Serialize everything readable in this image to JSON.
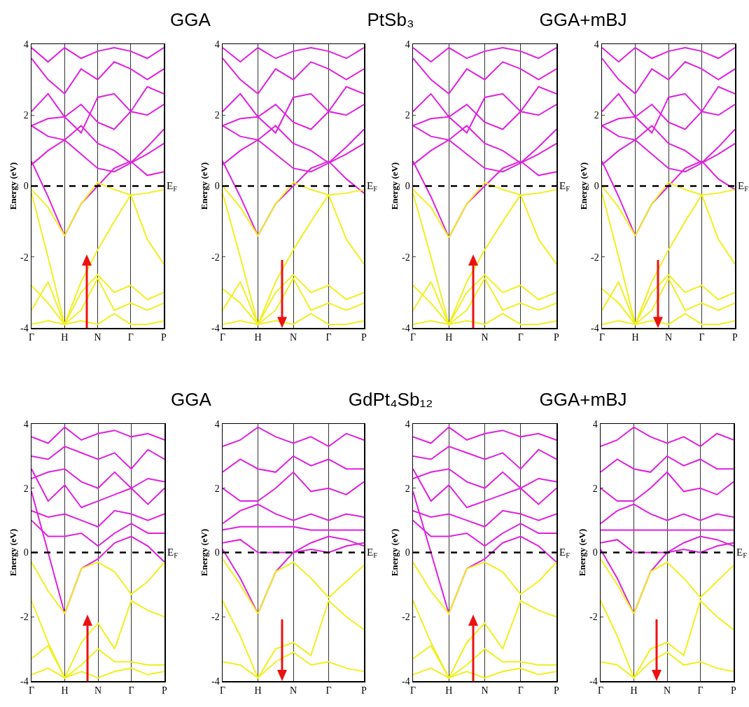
{
  "chart_data": [
    {
      "type": "line",
      "title": "GGA",
      "ylabel": "Energy (eV)",
      "categories": [
        "Γ",
        null,
        "H",
        null,
        "N",
        null,
        "Γ",
        null,
        "P"
      ],
      "ylim": [
        -4,
        4
      ],
      "yticks": [
        -4,
        -2,
        0,
        2,
        4
      ],
      "grid": "x",
      "marker": "none",
      "line_style": "solid",
      "ref_lines": [
        {
          "axis": "y",
          "value": 0,
          "label": "E$_{F}$",
          "color": "#000000",
          "line_style": "dashed"
        }
      ],
      "series": [
        {
          "color": "#e020e0",
          "values": [
            0.7,
            -0.3,
            -1.4,
            -0.5,
            0.0,
            0.5,
            0.7,
            0.3,
            0.4
          ]
        },
        {
          "color": "#e020e0",
          "values": [
            0.6,
            1.0,
            1.3,
            0.9,
            0.5,
            0.4,
            0.65,
            0.9,
            1.2
          ]
        },
        {
          "color": "#e020e0",
          "values": [
            1.7,
            1.4,
            1.3,
            1.7,
            1.2,
            1.0,
            0.65,
            1.1,
            1.6
          ]
        },
        {
          "color": "#e020e0",
          "values": [
            1.7,
            1.9,
            1.95,
            2.3,
            1.8,
            1.6,
            2.1,
            2.0,
            2.3
          ]
        },
        {
          "color": "#e020e0",
          "values": [
            2.1,
            2.6,
            1.95,
            1.5,
            2.5,
            2.6,
            2.1,
            2.8,
            2.6
          ]
        },
        {
          "color": "#e020e0",
          "values": [
            3.6,
            3.0,
            2.6,
            3.3,
            3.0,
            3.5,
            3.3,
            3.0,
            3.3
          ]
        },
        {
          "color": "#e020e0",
          "values": [
            3.9,
            3.5,
            3.9,
            3.6,
            3.8,
            3.9,
            3.8,
            3.6,
            3.9
          ]
        },
        {
          "color": "#f0f020",
          "values": [
            -0.1,
            -0.6,
            -1.4,
            -0.5,
            0.1,
            -0.1,
            -0.25,
            -0.2,
            -0.1
          ]
        },
        {
          "color": "#f0f020",
          "values": [
            -0.2,
            -2.0,
            -3.9,
            -2.7,
            -1.8,
            -1.0,
            -0.25,
            -1.5,
            -2.2
          ]
        },
        {
          "color": "#f0f020",
          "values": [
            -2.8,
            -3.3,
            -3.9,
            -3.0,
            -2.5,
            -3.0,
            -2.8,
            -3.2,
            -3.0
          ]
        },
        {
          "color": "#f0f020",
          "values": [
            -3.5,
            -2.7,
            -3.9,
            -3.5,
            -2.6,
            -3.5,
            -3.3,
            -3.5,
            -3.3
          ]
        },
        {
          "color": "#f0f020",
          "values": [
            -3.9,
            -3.8,
            -3.9,
            -3.8,
            -3.9,
            -3.6,
            -3.9,
            -3.9,
            -3.8
          ]
        }
      ]
    },
    {
      "type": "line",
      "title": "PtSb₃",
      "ylabel": "Energy (eV)",
      "categories": [
        "Γ",
        null,
        "H",
        null,
        "N",
        null,
        "Γ",
        null,
        "P"
      ],
      "ylim": [
        -4,
        4
      ],
      "yticks": [
        -4,
        -2,
        0,
        2,
        4
      ],
      "grid": "x",
      "marker": "none",
      "line_style": "solid",
      "ref_lines": [
        {
          "axis": "y",
          "value": 0,
          "label": "E$_{F}$",
          "color": "#000000",
          "line_style": "dashed"
        }
      ],
      "series": [
        {
          "color": "#e020e0",
          "values": [
            0.7,
            -0.3,
            -1.4,
            -0.5,
            0.0,
            0.5,
            0.7,
            0.2,
            -0.2
          ]
        },
        {
          "color": "#e020e0",
          "values": [
            0.6,
            1.0,
            1.3,
            0.9,
            0.5,
            0.4,
            0.65,
            0.9,
            1.2
          ]
        },
        {
          "color": "#e020e0",
          "values": [
            1.7,
            1.4,
            1.3,
            1.7,
            1.2,
            1.0,
            0.65,
            1.1,
            1.6
          ]
        },
        {
          "color": "#e020e0",
          "values": [
            1.7,
            1.9,
            1.95,
            2.3,
            1.8,
            1.6,
            2.1,
            2.0,
            2.3
          ]
        },
        {
          "color": "#e020e0",
          "values": [
            2.1,
            2.6,
            1.95,
            1.5,
            2.5,
            2.6,
            2.1,
            2.8,
            2.6
          ]
        },
        {
          "color": "#e020e0",
          "values": [
            3.6,
            3.0,
            2.6,
            3.3,
            3.0,
            3.5,
            3.3,
            3.0,
            3.3
          ]
        },
        {
          "color": "#e020e0",
          "values": [
            3.9,
            3.5,
            3.9,
            3.6,
            3.8,
            3.9,
            3.8,
            3.6,
            3.9
          ]
        },
        {
          "color": "#f0f020",
          "values": [
            0.0,
            -0.6,
            -1.4,
            -0.5,
            0.1,
            -0.1,
            -0.25,
            -0.2,
            -0.1
          ]
        },
        {
          "color": "#f0f020",
          "values": [
            -0.2,
            -2.0,
            -3.9,
            -2.7,
            -1.8,
            -1.0,
            -0.25,
            -1.5,
            -2.2
          ]
        },
        {
          "color": "#f0f020",
          "values": [
            -2.9,
            -3.3,
            -3.9,
            -3.0,
            -2.5,
            -3.0,
            -2.8,
            -3.2,
            -3.0
          ]
        },
        {
          "color": "#f0f020",
          "values": [
            -3.5,
            -2.7,
            -3.9,
            -3.5,
            -2.6,
            -3.5,
            -3.3,
            -3.5,
            -3.3
          ]
        },
        {
          "color": "#f0f020",
          "values": [
            -3.9,
            -3.8,
            -3.9,
            -3.8,
            -3.9,
            -3.6,
            -3.9,
            -3.9,
            -3.8
          ]
        }
      ]
    },
    {
      "type": "line",
      "title": "GGA+mBJ",
      "ylabel": "Energy (eV)",
      "categories": [
        "Γ",
        null,
        "H",
        null,
        "N",
        null,
        "Γ",
        null,
        "P"
      ],
      "ylim": [
        -4,
        4
      ],
      "yticks": [
        -4,
        -2,
        0,
        2,
        4
      ],
      "grid": "x",
      "marker": "none",
      "line_style": "solid",
      "ref_lines": [
        {
          "axis": "y",
          "value": 0,
          "label": "E$_{F}$",
          "color": "#000000",
          "line_style": "dashed"
        }
      ],
      "series": [
        {
          "color": "#e020e0",
          "values": [
            0.7,
            -0.3,
            -1.45,
            -0.5,
            0.0,
            0.5,
            0.7,
            0.3,
            0.4
          ]
        },
        {
          "color": "#e020e0",
          "values": [
            0.6,
            1.0,
            1.3,
            0.9,
            0.5,
            0.4,
            0.65,
            0.9,
            1.2
          ]
        },
        {
          "color": "#e020e0",
          "values": [
            1.7,
            1.4,
            1.3,
            1.7,
            1.2,
            1.0,
            0.65,
            1.1,
            1.6
          ]
        },
        {
          "color": "#e020e0",
          "values": [
            1.7,
            1.9,
            1.95,
            2.3,
            1.8,
            1.6,
            2.1,
            2.0,
            2.3
          ]
        },
        {
          "color": "#e020e0",
          "values": [
            2.1,
            2.6,
            1.95,
            1.5,
            2.5,
            2.6,
            2.1,
            2.8,
            2.6
          ]
        },
        {
          "color": "#e020e0",
          "values": [
            3.6,
            3.0,
            2.6,
            3.3,
            3.0,
            3.5,
            3.3,
            3.0,
            3.3
          ]
        },
        {
          "color": "#e020e0",
          "values": [
            3.9,
            3.5,
            3.9,
            3.6,
            3.8,
            3.9,
            3.8,
            3.6,
            3.9
          ]
        },
        {
          "color": "#f0f020",
          "values": [
            -0.1,
            -0.6,
            -1.45,
            -0.5,
            0.1,
            -0.1,
            -0.25,
            -0.2,
            -0.1
          ]
        },
        {
          "color": "#f0f020",
          "values": [
            -0.2,
            -2.0,
            -3.9,
            -2.7,
            -1.8,
            -1.0,
            -0.25,
            -1.5,
            -2.2
          ]
        },
        {
          "color": "#f0f020",
          "values": [
            -2.8,
            -3.3,
            -3.9,
            -3.0,
            -2.5,
            -3.0,
            -2.8,
            -3.2,
            -3.0
          ]
        },
        {
          "color": "#f0f020",
          "values": [
            -3.5,
            -2.7,
            -3.9,
            -3.5,
            -2.6,
            -3.5,
            -3.3,
            -3.5,
            -3.3
          ]
        },
        {
          "color": "#f0f020",
          "values": [
            -3.9,
            -3.8,
            -3.9,
            -3.8,
            -3.9,
            -3.6,
            -3.9,
            -3.9,
            -3.8
          ]
        }
      ]
    },
    {
      "type": "line",
      "ylabel": "Energy (eV)",
      "categories": [
        "Γ",
        null,
        "H",
        null,
        "N",
        null,
        "Γ",
        null,
        "P"
      ],
      "ylim": [
        -4,
        4
      ],
      "yticks": [
        -4,
        -2,
        0,
        2,
        4
      ],
      "grid": "x",
      "marker": "none",
      "line_style": "solid",
      "ref_lines": [
        {
          "axis": "y",
          "value": 0,
          "label": "E$_{F}$",
          "color": "#000000",
          "line_style": "dashed"
        }
      ],
      "series": [
        {
          "color": "#e020e0",
          "values": [
            0.7,
            -0.3,
            -1.4,
            -0.5,
            0.0,
            0.5,
            0.7,
            0.2,
            -0.1
          ]
        },
        {
          "color": "#e020e0",
          "values": [
            0.6,
            1.0,
            1.3,
            0.9,
            0.5,
            0.4,
            0.65,
            0.9,
            1.2
          ]
        },
        {
          "color": "#e020e0",
          "values": [
            1.7,
            1.4,
            1.3,
            1.7,
            1.2,
            1.0,
            0.65,
            1.1,
            1.6
          ]
        },
        {
          "color": "#e020e0",
          "values": [
            1.7,
            1.9,
            1.95,
            2.3,
            1.8,
            1.6,
            2.1,
            2.0,
            2.3
          ]
        },
        {
          "color": "#e020e0",
          "values": [
            2.1,
            2.6,
            1.95,
            1.5,
            2.5,
            2.6,
            2.1,
            2.8,
            2.6
          ]
        },
        {
          "color": "#e020e0",
          "values": [
            3.6,
            3.0,
            2.6,
            3.3,
            3.0,
            3.5,
            3.3,
            3.0,
            3.3
          ]
        },
        {
          "color": "#e020e0",
          "values": [
            3.9,
            3.5,
            3.9,
            3.6,
            3.8,
            3.9,
            3.8,
            3.6,
            3.9
          ]
        },
        {
          "color": "#f0f020",
          "values": [
            0.0,
            -0.6,
            -1.4,
            -0.5,
            0.1,
            -0.1,
            -0.25,
            -0.2,
            -0.1
          ]
        },
        {
          "color": "#f0f020",
          "values": [
            -0.2,
            -2.0,
            -3.9,
            -2.7,
            -1.8,
            -1.0,
            -0.25,
            -1.5,
            -2.2
          ]
        },
        {
          "color": "#f0f020",
          "values": [
            -2.9,
            -3.3,
            -3.9,
            -3.0,
            -2.5,
            -3.0,
            -2.8,
            -3.2,
            -3.0
          ]
        },
        {
          "color": "#f0f020",
          "values": [
            -3.5,
            -2.7,
            -3.9,
            -3.5,
            -2.6,
            -3.5,
            -3.3,
            -3.5,
            -3.3
          ]
        },
        {
          "color": "#f0f020",
          "values": [
            -3.9,
            -3.8,
            -3.9,
            -3.8,
            -3.9,
            -3.6,
            -3.9,
            -3.9,
            -3.8
          ]
        }
      ]
    },
    {
      "type": "line",
      "title": "GGA",
      "ylabel": "Energy (eV)",
      "categories": [
        "Γ",
        null,
        "H",
        null,
        "N",
        null,
        "Γ",
        null,
        "P"
      ],
      "ylim": [
        -4,
        4
      ],
      "yticks": [
        -4,
        -2,
        0,
        2,
        4
      ],
      "grid": "x",
      "marker": "none",
      "line_style": "solid",
      "ref_lines": [
        {
          "axis": "y",
          "value": 0,
          "label": "E$_{F}$",
          "color": "#000000",
          "line_style": "dashed"
        }
      ],
      "series": [
        {
          "color": "#e020e0",
          "values": [
            1.9,
            0.0,
            -1.9,
            -0.5,
            -0.2,
            0.3,
            0.5,
            0.2,
            -0.3
          ]
        },
        {
          "color": "#e020e0",
          "values": [
            1.0,
            0.5,
            0.5,
            0.6,
            0.2,
            0.6,
            0.9,
            0.6,
            0.6
          ]
        },
        {
          "color": "#e020e0",
          "values": [
            1.3,
            1.1,
            1.2,
            1.0,
            0.8,
            1.3,
            1.2,
            1.0,
            1.2
          ]
        },
        {
          "color": "#e020e0",
          "values": [
            2.6,
            1.6,
            2.1,
            1.4,
            1.6,
            1.8,
            2.0,
            1.5,
            2.0
          ]
        },
        {
          "color": "#e020e0",
          "values": [
            2.3,
            2.5,
            2.6,
            2.2,
            2.0,
            2.5,
            2.0,
            2.3,
            2.2
          ]
        },
        {
          "color": "#e020e0",
          "values": [
            3.0,
            2.9,
            3.3,
            3.1,
            2.9,
            3.1,
            2.6,
            3.2,
            2.9
          ]
        },
        {
          "color": "#e020e0",
          "values": [
            3.6,
            3.4,
            3.9,
            3.5,
            3.7,
            3.8,
            3.6,
            3.7,
            3.5
          ]
        },
        {
          "color": "#f0f020",
          "values": [
            -0.3,
            -1.2,
            -1.9,
            -0.5,
            -0.3,
            -0.6,
            -1.3,
            -0.9,
            -0.3
          ]
        },
        {
          "color": "#f0f020",
          "values": [
            -1.5,
            -2.8,
            -3.9,
            -2.8,
            -2.2,
            -3.0,
            -1.5,
            -1.8,
            -2.0
          ]
        },
        {
          "color": "#f0f020",
          "values": [
            -3.3,
            -2.9,
            -3.9,
            -3.5,
            -3.0,
            -3.4,
            -3.4,
            -3.5,
            -3.5
          ]
        },
        {
          "color": "#f0f020",
          "values": [
            -3.8,
            -3.6,
            -3.9,
            -3.7,
            -3.9,
            -3.7,
            -3.6,
            -3.8,
            -3.7
          ]
        }
      ]
    },
    {
      "type": "line",
      "title": "GdPt₄Sb₁₂",
      "ylabel": "Energy (eV)",
      "categories": [
        "Γ",
        null,
        "H",
        null,
        "N",
        null,
        "Γ",
        null,
        "P"
      ],
      "ylim": [
        -4,
        4
      ],
      "yticks": [
        -4,
        -2,
        0,
        2,
        4
      ],
      "grid": "x",
      "marker": "none",
      "line_style": "solid",
      "ref_lines": [
        {
          "axis": "y",
          "value": 0,
          "label": "E$_{F}$",
          "color": "#000000",
          "line_style": "dashed"
        }
      ],
      "series": [
        {
          "color": "#e020e0",
          "values": [
            0.1,
            -0.8,
            -1.9,
            -0.6,
            0.0,
            0.1,
            0.0,
            0.2,
            0.3
          ]
        },
        {
          "color": "#e020e0",
          "values": [
            0.3,
            0.4,
            0.0,
            0.0,
            0.0,
            0.3,
            0.5,
            0.4,
            0.2
          ]
        },
        {
          "color": "#e020e0",
          "values": [
            0.7,
            0.8,
            0.8,
            0.8,
            0.8,
            0.7,
            0.7,
            0.7,
            0.7
          ]
        },
        {
          "color": "#e020e0",
          "values": [
            0.9,
            1.3,
            1.5,
            1.2,
            1.0,
            1.2,
            1.0,
            1.2,
            1.1
          ]
        },
        {
          "color": "#e020e0",
          "values": [
            2.0,
            1.6,
            1.6,
            2.0,
            2.5,
            1.9,
            2.0,
            1.8,
            2.2
          ]
        },
        {
          "color": "#e020e0",
          "values": [
            2.5,
            2.9,
            2.6,
            2.5,
            3.0,
            2.7,
            2.9,
            2.6,
            2.6
          ]
        },
        {
          "color": "#e020e0",
          "values": [
            3.3,
            3.5,
            3.9,
            3.6,
            3.4,
            3.6,
            3.3,
            3.7,
            3.5
          ]
        },
        {
          "color": "#f0f020",
          "values": [
            -0.2,
            -1.0,
            -1.9,
            -0.6,
            -0.3,
            -0.8,
            -1.4,
            -0.9,
            -0.4
          ]
        },
        {
          "color": "#f0f020",
          "values": [
            -1.5,
            -2.6,
            -3.9,
            -3.0,
            -2.8,
            -3.2,
            -1.5,
            -2.0,
            -2.4
          ]
        },
        {
          "color": "#f0f020",
          "values": [
            -3.4,
            -3.5,
            -3.9,
            -3.4,
            -3.1,
            -3.5,
            -3.4,
            -3.6,
            -3.7
          ]
        }
      ]
    },
    {
      "type": "line",
      "title": "GGA+mBJ",
      "ylabel": "Energy (eV)",
      "categories": [
        "Γ",
        null,
        "H",
        null,
        "N",
        null,
        "Γ",
        null,
        "P"
      ],
      "ylim": [
        -4,
        4
      ],
      "yticks": [
        -4,
        -2,
        0,
        2,
        4
      ],
      "grid": "x",
      "marker": "none",
      "line_style": "solid",
      "ref_lines": [
        {
          "axis": "y",
          "value": 0,
          "label": "E$_{F}$",
          "color": "#000000",
          "line_style": "dashed"
        }
      ],
      "series": [
        {
          "color": "#e020e0",
          "values": [
            1.9,
            0.0,
            -1.9,
            -0.5,
            -0.2,
            0.3,
            0.5,
            0.2,
            -0.3
          ]
        },
        {
          "color": "#e020e0",
          "values": [
            1.0,
            0.5,
            0.5,
            0.6,
            0.2,
            0.6,
            0.9,
            0.6,
            0.6
          ]
        },
        {
          "color": "#e020e0",
          "values": [
            1.3,
            1.1,
            1.2,
            1.0,
            0.8,
            1.3,
            1.2,
            1.0,
            1.2
          ]
        },
        {
          "color": "#e020e0",
          "values": [
            2.6,
            1.6,
            2.1,
            1.4,
            1.6,
            1.8,
            2.0,
            1.5,
            2.0
          ]
        },
        {
          "color": "#e020e0",
          "values": [
            2.3,
            2.5,
            2.6,
            2.2,
            2.0,
            2.5,
            2.0,
            2.3,
            2.2
          ]
        },
        {
          "color": "#e020e0",
          "values": [
            3.0,
            2.9,
            3.3,
            3.1,
            2.9,
            3.1,
            2.6,
            3.2,
            2.9
          ]
        },
        {
          "color": "#e020e0",
          "values": [
            3.6,
            3.4,
            3.9,
            3.5,
            3.7,
            3.8,
            3.6,
            3.7,
            3.5
          ]
        },
        {
          "color": "#f0f020",
          "values": [
            -0.3,
            -1.2,
            -1.9,
            -0.5,
            -0.3,
            -0.6,
            -1.3,
            -0.9,
            -0.3
          ]
        },
        {
          "color": "#f0f020",
          "values": [
            -1.5,
            -2.8,
            -3.9,
            -2.8,
            -2.2,
            -3.0,
            -1.5,
            -1.8,
            -2.0
          ]
        },
        {
          "color": "#f0f020",
          "values": [
            -3.3,
            -2.9,
            -3.9,
            -3.5,
            -3.0,
            -3.4,
            -3.4,
            -3.5,
            -3.5
          ]
        },
        {
          "color": "#f0f020",
          "values": [
            -3.8,
            -3.6,
            -3.9,
            -3.7,
            -3.9,
            -3.7,
            -3.6,
            -3.8,
            -3.7
          ]
        }
      ]
    },
    {
      "type": "line",
      "ylabel": "Energy (eV)",
      "categories": [
        "Γ",
        null,
        "H",
        null,
        "N",
        null,
        "Γ",
        null,
        "P"
      ],
      "ylim": [
        -4,
        4
      ],
      "yticks": [
        -4,
        -2,
        0,
        2,
        4
      ],
      "grid": "x",
      "marker": "none",
      "line_style": "solid",
      "ref_lines": [
        {
          "axis": "y",
          "value": 0,
          "label": "E$_{F}$",
          "color": "#000000",
          "line_style": "dashed"
        }
      ],
      "series": [
        {
          "color": "#e020e0",
          "values": [
            0.1,
            -0.8,
            -1.9,
            -0.6,
            0.0,
            0.1,
            0.0,
            0.2,
            0.3
          ]
        },
        {
          "color": "#e020e0",
          "values": [
            0.3,
            0.4,
            0.0,
            0.0,
            0.0,
            0.3,
            0.5,
            0.4,
            0.2
          ]
        },
        {
          "color": "#e020e0",
          "values": [
            0.7,
            0.7,
            0.7,
            0.7,
            0.7,
            0.7,
            0.7,
            0.7,
            0.7
          ]
        },
        {
          "color": "#e020e0",
          "values": [
            0.9,
            1.3,
            1.5,
            1.2,
            1.0,
            1.2,
            1.0,
            1.2,
            1.1
          ]
        },
        {
          "color": "#e020e0",
          "values": [
            2.0,
            1.6,
            1.6,
            2.0,
            2.5,
            1.9,
            2.0,
            1.8,
            2.2
          ]
        },
        {
          "color": "#e020e0",
          "values": [
            2.5,
            2.9,
            2.6,
            2.5,
            3.0,
            2.7,
            2.9,
            2.6,
            2.6
          ]
        },
        {
          "color": "#e020e0",
          "values": [
            3.3,
            3.5,
            3.9,
            3.6,
            3.4,
            3.6,
            3.3,
            3.7,
            3.5
          ]
        },
        {
          "color": "#f0f020",
          "values": [
            -0.2,
            -1.0,
            -1.9,
            -0.6,
            -0.3,
            -0.8,
            -1.4,
            -0.9,
            -0.4
          ]
        },
        {
          "color": "#f0f020",
          "values": [
            -1.5,
            -2.6,
            -3.9,
            -3.0,
            -2.8,
            -3.2,
            -1.5,
            -2.0,
            -2.4
          ]
        },
        {
          "color": "#f0f020",
          "values": [
            -3.4,
            -3.5,
            -3.9,
            -3.4,
            -3.1,
            -3.5,
            -3.4,
            -3.6,
            -3.7
          ]
        }
      ]
    }
  ]
}
